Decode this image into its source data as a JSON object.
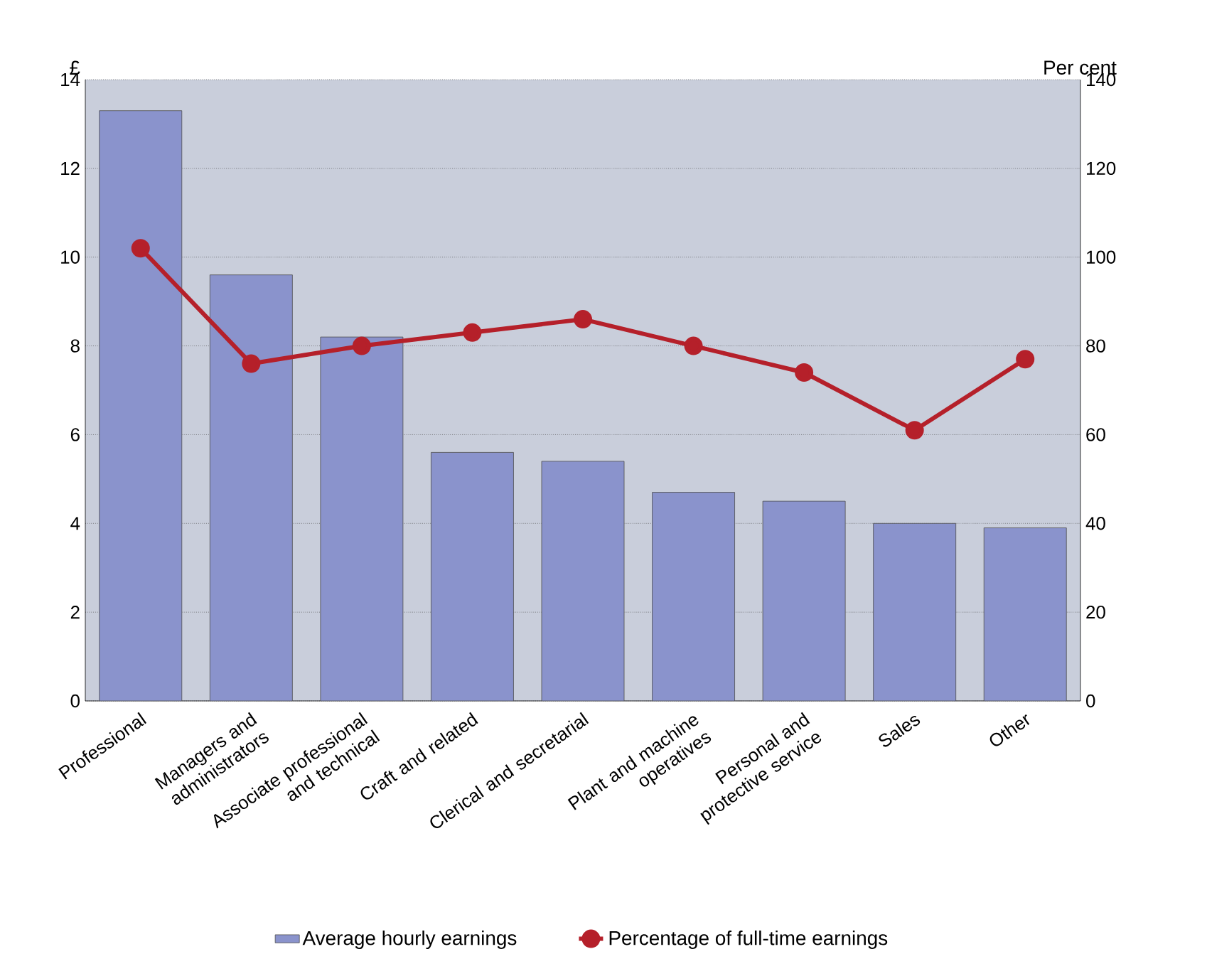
{
  "chart_data": {
    "type": "bar",
    "categories": [
      "Professional",
      "Managers and administrators",
      "Associate professional and technical",
      "Craft and related",
      "Clerical and secretarial",
      "Plant and machine operatives",
      "Personal and protective service",
      "Sales",
      "Other"
    ],
    "series": [
      {
        "name": "Average hourly earnings",
        "color": "#8a93cc",
        "values": [
          13.3,
          9.6,
          8.2,
          5.6,
          5.4,
          4.7,
          4.5,
          4.0,
          3.9
        ]
      },
      {
        "name": "Percentage of full-time earnings",
        "type": "line",
        "axis": "y2",
        "color": "#b5202a",
        "values": [
          102,
          76,
          80,
          83,
          86,
          80,
          74,
          61,
          77
        ]
      }
    ],
    "ylabel": "£",
    "y2label": "Per cent",
    "ylim": [
      0,
      14
    ],
    "yticks": [
      0,
      2,
      4,
      6,
      8,
      10,
      12,
      14
    ],
    "y2lim": [
      0,
      140
    ],
    "y2ticks": [
      0,
      20,
      40,
      60,
      80,
      100,
      120,
      140
    ],
    "grid": "y",
    "legend": "bottom",
    "marker": "circle",
    "line_style": "solid"
  }
}
